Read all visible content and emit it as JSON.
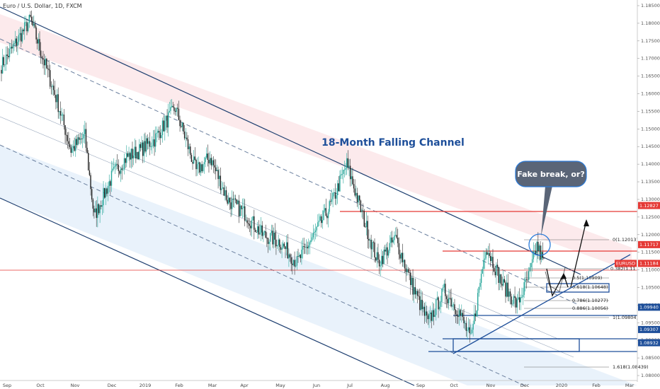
{
  "chart_data": {
    "type": "candlestick",
    "symbol_label": "Euro / U.S. Dollar, 1D, FXCM",
    "title": "18-Month Falling Channel",
    "callout": "Fake break, or?",
    "y_axis": {
      "min": 1.0805,
      "max": 1.1878,
      "ticks": [
        "1.18500",
        "1.18000",
        "1.17500",
        "1.17000",
        "1.16500",
        "1.16000",
        "1.15500",
        "1.15000",
        "1.14500",
        "1.14000",
        "1.13500",
        "1.13000",
        "1.12500",
        "1.12000",
        "1.11500",
        "1.11000",
        "1.10500",
        "1.10000",
        "1.09500",
        "1.09000",
        "1.08500",
        "1.08000"
      ]
    },
    "x_axis": {
      "ticks": [
        "Sep",
        "Oct",
        "Nov",
        "Dec",
        "2019",
        "Feb",
        "Mar",
        "Apr",
        "May",
        "Jun",
        "Jul",
        "Aug",
        "Sep",
        "Oct",
        "Nov",
        "Dec",
        "2020",
        "Feb",
        "Mar"
      ]
    },
    "price_tags": [
      {
        "label": "1.12827",
        "value": 1.12827,
        "color": "#e53935"
      },
      {
        "label": "1.11717",
        "value": 1.11717,
        "color": "#e53935"
      },
      {
        "label": "EURUSD",
        "value": 1.11184,
        "color": "#e53935"
      },
      {
        "label": "1.11184",
        "value": 1.11184,
        "color": "#e53935"
      },
      {
        "label": "1.09940",
        "value": 1.0994,
        "color": "#1e4f9a"
      },
      {
        "label": "1.09307",
        "value": 1.09307,
        "color": "#1e4f9a"
      },
      {
        "label": "1.08932",
        "value": 1.08932,
        "color": "#1e4f9a"
      }
    ],
    "fib_levels": [
      {
        "label": "0(1.12013)",
        "value": 1.12013
      },
      {
        "label": "0.382(1.11",
        "value": 1.1123
      },
      {
        "label": "0.5(1.10909)",
        "value": 1.10909
      },
      {
        "label": "0.618(1.10648)",
        "value": 1.10648
      },
      {
        "label": "0.786(1.10277)",
        "value": 1.10277
      },
      {
        "label": "0.886(1.10056)",
        "value": 1.10056
      },
      {
        "label": "1(1.09804)",
        "value": 1.09804
      },
      {
        "label": "1.618(1.08439)",
        "value": 1.08439
      }
    ],
    "key_prices": [
      {
        "date_index": 0,
        "value": 1.168
      },
      {
        "date_index": 25,
        "value": 1.181
      },
      {
        "date_index": 48,
        "value": 1.158
      },
      {
        "date_index": 60,
        "value": 1.144
      },
      {
        "date_index": 72,
        "value": 1.148
      },
      {
        "date_index": 80,
        "value": 1.125
      },
      {
        "date_index": 96,
        "value": 1.137
      },
      {
        "date_index": 108,
        "value": 1.142
      },
      {
        "date_index": 120,
        "value": 1.144
      },
      {
        "date_index": 132,
        "value": 1.147
      },
      {
        "date_index": 150,
        "value": 1.156
      },
      {
        "date_index": 168,
        "value": 1.138
      },
      {
        "date_index": 180,
        "value": 1.142
      },
      {
        "date_index": 195,
        "value": 1.13
      },
      {
        "date_index": 210,
        "value": 1.126
      },
      {
        "date_index": 225,
        "value": 1.12
      },
      {
        "date_index": 240,
        "value": 1.118
      },
      {
        "date_index": 255,
        "value": 1.112
      },
      {
        "date_index": 270,
        "value": 1.12
      },
      {
        "date_index": 285,
        "value": 1.129
      },
      {
        "date_index": 298,
        "value": 1.14
      },
      {
        "date_index": 312,
        "value": 1.125
      },
      {
        "date_index": 325,
        "value": 1.112
      },
      {
        "date_index": 340,
        "value": 1.119
      },
      {
        "date_index": 355,
        "value": 1.105
      },
      {
        "date_index": 368,
        "value": 1.095
      },
      {
        "date_index": 382,
        "value": 1.104
      },
      {
        "date_index": 395,
        "value": 1.098
      },
      {
        "date_index": 405,
        "value": 1.09
      },
      {
        "date_index": 418,
        "value": 1.117
      },
      {
        "date_index": 432,
        "value": 1.106
      },
      {
        "date_index": 445,
        "value": 1.1
      },
      {
        "date_index": 455,
        "value": 1.108
      },
      {
        "date_index": 462,
        "value": 1.117
      },
      {
        "date_index": 468,
        "value": 1.1118
      }
    ]
  }
}
